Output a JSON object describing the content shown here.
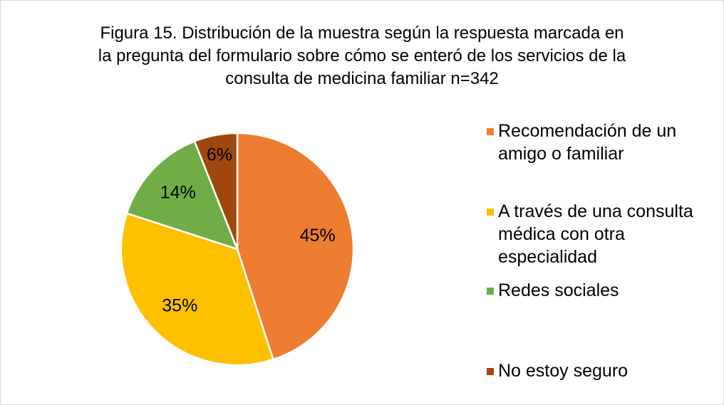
{
  "chart_data": {
    "type": "pie",
    "title": "Figura 15. Distribución de la muestra según la respuesta marcada en la pregunta del formulario sobre cómo se enteró de los servicios de la consulta de medicina familiar n=342",
    "categories": [
      "Recomendación de un amigo o familiar",
      "A través de una consulta médica con otra especialidad",
      "Redes sociales",
      "No estoy seguro"
    ],
    "values": [
      45,
      35,
      14,
      6
    ],
    "value_labels": [
      "45%",
      "35%",
      "14%",
      "6%"
    ],
    "colors": [
      "#ED7D31",
      "#FFC000",
      "#70AD47",
      "#9E480E"
    ],
    "legend": "right"
  }
}
